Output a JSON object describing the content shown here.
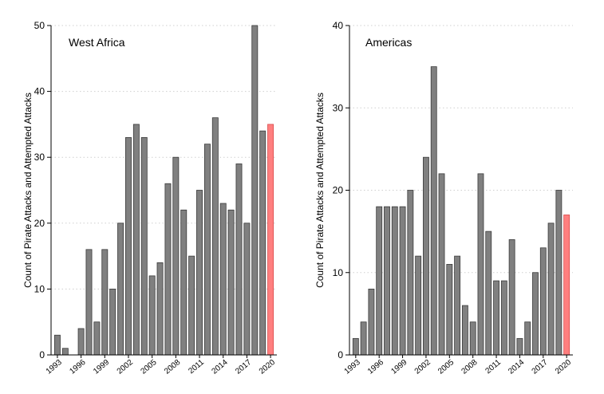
{
  "chart_data": [
    {
      "type": "bar",
      "title": "West Africa",
      "ylabel": "Count of Pirate Attacks and Attempted Attacks",
      "xlabel": "",
      "ylim": [
        0,
        50
      ],
      "yticks": [
        0,
        10,
        20,
        30,
        40,
        50
      ],
      "grid": true,
      "x": [
        1993,
        1994,
        1995,
        1996,
        1997,
        1998,
        1999,
        2000,
        2001,
        2002,
        2003,
        2004,
        2005,
        2006,
        2007,
        2008,
        2009,
        2010,
        2011,
        2012,
        2013,
        2014,
        2015,
        2016,
        2017,
        2018,
        2019,
        2020
      ],
      "xtick_labels": [
        "1993",
        "1996",
        "1999",
        "2002",
        "2005",
        "2008",
        "2011",
        "2014",
        "2017",
        "2020"
      ],
      "values": [
        3,
        1,
        0,
        4,
        16,
        5,
        16,
        10,
        20,
        33,
        35,
        33,
        12,
        14,
        26,
        30,
        22,
        15,
        25,
        32,
        36,
        23,
        22,
        29,
        20,
        50,
        34,
        35
      ],
      "bar_color": "#808080",
      "highlight_color": "#ff7f7f",
      "highlight_x": 2020
    },
    {
      "type": "bar",
      "title": "Americas",
      "ylabel": "Count of Pirate Attacks and Attempted Attacks",
      "xlabel": "",
      "ylim": [
        0,
        40
      ],
      "yticks": [
        0,
        10,
        20,
        30,
        40
      ],
      "grid": true,
      "x": [
        1993,
        1994,
        1995,
        1996,
        1997,
        1998,
        1999,
        2000,
        2001,
        2002,
        2003,
        2004,
        2005,
        2006,
        2007,
        2008,
        2009,
        2010,
        2011,
        2012,
        2013,
        2014,
        2015,
        2016,
        2017,
        2018,
        2019,
        2020
      ],
      "xtick_labels": [
        "1993",
        "1996",
        "1999",
        "2002",
        "2005",
        "2008",
        "2011",
        "2014",
        "2017",
        "2020"
      ],
      "values": [
        2,
        4,
        8,
        18,
        18,
        18,
        18,
        20,
        12,
        24,
        35,
        22,
        11,
        12,
        6,
        4,
        22,
        15,
        9,
        9,
        14,
        2,
        4,
        10,
        13,
        16,
        20,
        17
      ],
      "bar_color": "#808080",
      "highlight_color": "#ff7f7f",
      "highlight_x": 2020
    }
  ]
}
